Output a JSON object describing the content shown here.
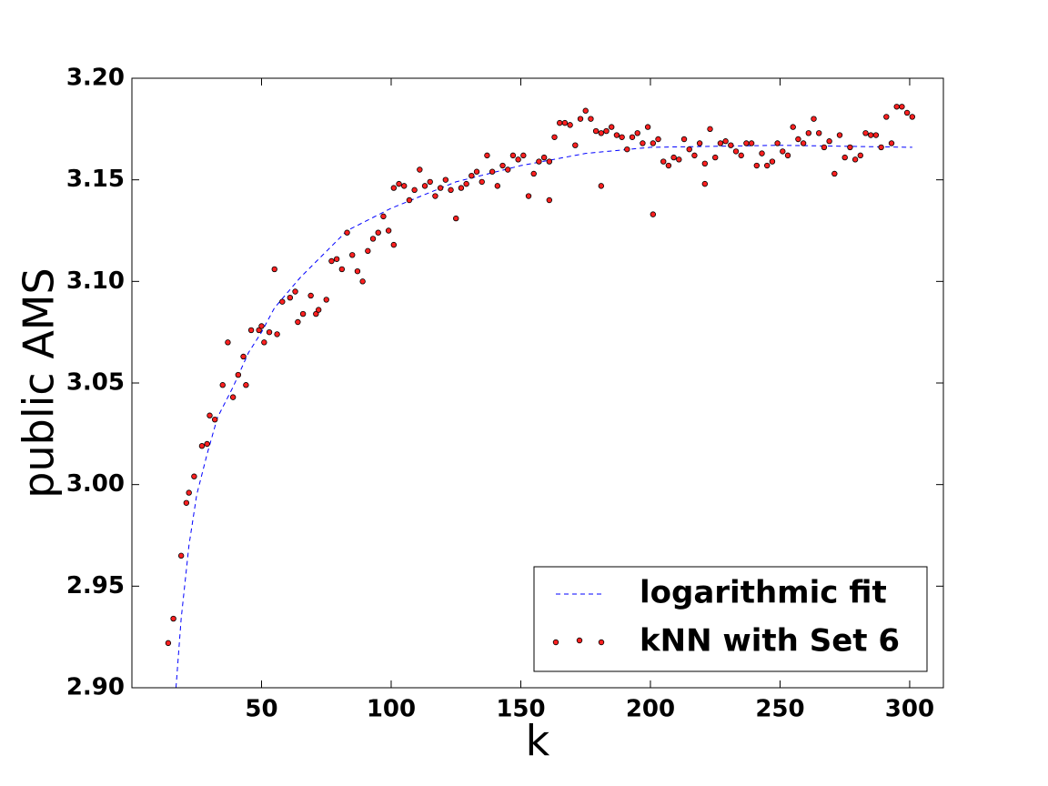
{
  "chart_data": {
    "type": "scatter",
    "xlabel": "k",
    "ylabel": "public AMS",
    "xlim": [
      0,
      313
    ],
    "ylim": [
      2.9,
      3.2
    ],
    "xticks": [
      50,
      100,
      150,
      200,
      250,
      300
    ],
    "yticks": [
      {
        "value": 2.9,
        "label": "2.90"
      },
      {
        "value": 2.95,
        "label": "2.95"
      },
      {
        "value": 3.0,
        "label": "3.00"
      },
      {
        "value": 3.05,
        "label": "3.05"
      },
      {
        "value": 3.1,
        "label": "3.10"
      },
      {
        "value": 3.15,
        "label": "3.15"
      },
      {
        "value": 3.2,
        "label": "3.20"
      }
    ],
    "legend": "lower right",
    "series": [
      {
        "name": "logarithmic fit",
        "mark": "dashed-line",
        "color": "#0000ff",
        "x": [
          17,
          19,
          22,
          25,
          29,
          33,
          39,
          45,
          50,
          55,
          65,
          83,
          100,
          125,
          150,
          175,
          200,
          250,
          301
        ],
        "values": [
          2.9,
          2.934,
          2.97,
          2.995,
          3.015,
          3.033,
          3.048,
          3.065,
          3.075,
          3.087,
          3.102,
          3.125,
          3.136,
          3.149,
          3.157,
          3.163,
          3.166,
          3.167,
          3.166
        ]
      },
      {
        "name": "kNN with Set 6",
        "mark": "point",
        "color": "#ff2020",
        "x": [
          14,
          16,
          19,
          21,
          22,
          24,
          27,
          29,
          30,
          32,
          35,
          37,
          39,
          41,
          43,
          44,
          46,
          49,
          50,
          51,
          53,
          55,
          56,
          58,
          61,
          63,
          64,
          66,
          69,
          71,
          72,
          75,
          77,
          79,
          81,
          83,
          85,
          87,
          89,
          91,
          93,
          95,
          97,
          99,
          101,
          101,
          103,
          105,
          107,
          109,
          111,
          113,
          115,
          117,
          119,
          121,
          123,
          125,
          127,
          129,
          131,
          133,
          135,
          137,
          139,
          141,
          143,
          145,
          147,
          149,
          151,
          153,
          155,
          157,
          159,
          161,
          161,
          163,
          165,
          167,
          169,
          171,
          173,
          175,
          177,
          179,
          181,
          181,
          183,
          185,
          187,
          189,
          191,
          193,
          195,
          197,
          199,
          201,
          201,
          203,
          205,
          207,
          209,
          211,
          213,
          215,
          217,
          219,
          221,
          221,
          223,
          225,
          227,
          229,
          231,
          233,
          235,
          237,
          239,
          241,
          243,
          245,
          247,
          249,
          251,
          253,
          255,
          257,
          259,
          261,
          263,
          265,
          267,
          269,
          271,
          273,
          275,
          277,
          279,
          281,
          283,
          285,
          287,
          289,
          291,
          293,
          295,
          297,
          299,
          301
        ],
        "values": [
          2.922,
          2.934,
          2.965,
          2.991,
          2.996,
          3.004,
          3.019,
          3.02,
          3.034,
          3.032,
          3.049,
          3.07,
          3.043,
          3.054,
          3.063,
          3.049,
          3.076,
          3.076,
          3.078,
          3.07,
          3.075,
          3.106,
          3.074,
          3.09,
          3.092,
          3.095,
          3.08,
          3.084,
          3.093,
          3.084,
          3.086,
          3.091,
          3.11,
          3.111,
          3.106,
          3.124,
          3.113,
          3.105,
          3.1,
          3.115,
          3.121,
          3.124,
          3.132,
          3.125,
          3.118,
          3.146,
          3.148,
          3.147,
          3.14,
          3.145,
          3.155,
          3.147,
          3.149,
          3.142,
          3.146,
          3.15,
          3.145,
          3.131,
          3.146,
          3.148,
          3.152,
          3.154,
          3.149,
          3.162,
          3.154,
          3.147,
          3.157,
          3.155,
          3.162,
          3.16,
          3.162,
          3.142,
          3.153,
          3.159,
          3.161,
          3.159,
          3.14,
          3.171,
          3.178,
          3.178,
          3.177,
          3.167,
          3.18,
          3.184,
          3.18,
          3.174,
          3.147,
          3.173,
          3.174,
          3.176,
          3.172,
          3.171,
          3.165,
          3.171,
          3.173,
          3.168,
          3.176,
          3.168,
          3.133,
          3.17,
          3.159,
          3.157,
          3.161,
          3.16,
          3.17,
          3.165,
          3.162,
          3.168,
          3.158,
          3.148,
          3.175,
          3.161,
          3.168,
          3.169,
          3.167,
          3.164,
          3.162,
          3.168,
          3.168,
          3.157,
          3.163,
          3.157,
          3.159,
          3.168,
          3.164,
          3.162,
          3.176,
          3.17,
          3.168,
          3.173,
          3.18,
          3.173,
          3.166,
          3.169,
          3.153,
          3.172,
          3.161,
          3.166,
          3.16,
          3.162,
          3.173,
          3.172,
          3.172,
          3.166,
          3.181,
          3.168,
          3.186,
          3.186,
          3.183,
          3.181
        ]
      }
    ]
  }
}
